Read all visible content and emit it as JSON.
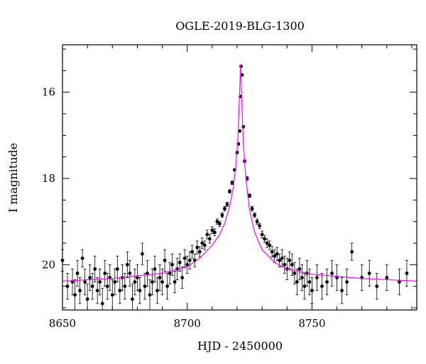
{
  "chart_data": {
    "type": "scatter",
    "title": "OGLE-2019-BLG-1300",
    "xlabel": "HJD - 2450000",
    "ylabel": "I magnitude",
    "xlim": [
      8650,
      8792
    ],
    "ylim": [
      21.05,
      14.9
    ],
    "y_inverted": true,
    "x_ticks": [
      8650,
      8700,
      8750
    ],
    "y_ticks": [
      16,
      18,
      20
    ],
    "grid": false,
    "colors": {
      "points": "#000000",
      "errorbars": "#000000",
      "model": "#ff00ff",
      "frame": "#000000"
    },
    "model": {
      "name": "",
      "x": [
        8650,
        8670,
        8690,
        8700,
        8705,
        8710,
        8713,
        8715,
        8717,
        8718.5,
        8719.5,
        8720.3,
        8721,
        8721.4,
        8721.8,
        8722.5,
        8723.5,
        8725,
        8727,
        8730,
        8735,
        8740,
        8750,
        8770,
        8792
      ],
      "y": [
        20.38,
        20.32,
        20.2,
        20.05,
        19.85,
        19.55,
        19.3,
        19.05,
        18.65,
        18.2,
        17.7,
        17.1,
        16.0,
        15.35,
        16.1,
        17.2,
        18.0,
        18.75,
        19.25,
        19.65,
        19.95,
        20.1,
        20.22,
        20.32,
        20.38
      ]
    },
    "series": [
      {
        "x": [
          8650,
          8652,
          8654,
          8655,
          8656,
          8657,
          8658,
          8659,
          8660,
          8661,
          8662,
          8663,
          8664,
          8665,
          8666,
          8667,
          8668,
          8669,
          8670,
          8671,
          8672,
          8673,
          8674,
          8675,
          8676,
          8677,
          8678,
          8679,
          8680,
          8681,
          8682,
          8683,
          8684,
          8685,
          8686,
          8687,
          8688,
          8689,
          8690,
          8691,
          8692,
          8693,
          8694,
          8695,
          8696,
          8697,
          8698,
          8699,
          8700,
          8701,
          8702,
          8703,
          8704,
          8705,
          8706,
          8707,
          8708,
          8709,
          8710,
          8711,
          8712,
          8713,
          8714,
          8715,
          8716,
          8717,
          8718,
          8719,
          8720,
          8720.5,
          8721,
          8721.3,
          8721.6,
          8722,
          8722.5,
          8723,
          8724,
          8725,
          8726,
          8727,
          8728,
          8729,
          8730,
          8731,
          8732,
          8733,
          8734,
          8735,
          8736,
          8737,
          8738,
          8739,
          8740,
          8741,
          8742,
          8743,
          8744,
          8745,
          8746,
          8747,
          8748,
          8749,
          8750,
          8752,
          8754,
          8756,
          8758,
          8760,
          8762,
          8764,
          8766,
          8770,
          8773,
          8776,
          8780,
          8785,
          8788
        ],
        "y": [
          19.9,
          20.5,
          20.4,
          20.7,
          20.2,
          20.6,
          19.85,
          20.4,
          20.8,
          20.3,
          20.5,
          20.1,
          20.6,
          20.4,
          20.9,
          20.2,
          20.5,
          20.3,
          20.7,
          20.4,
          20.1,
          20.6,
          20.3,
          20.5,
          20.0,
          20.2,
          20.8,
          20.4,
          20.3,
          20.6,
          19.75,
          20.5,
          20.2,
          20.7,
          20.4,
          20.1,
          20.6,
          20.3,
          20.4,
          19.9,
          20.5,
          20.2,
          20.0,
          20.4,
          20.1,
          19.95,
          20.3,
          19.85,
          20.0,
          19.9,
          19.7,
          19.9,
          19.6,
          19.7,
          19.5,
          19.55,
          19.3,
          19.4,
          19.2,
          19.25,
          19.0,
          19.05,
          18.85,
          18.7,
          18.6,
          18.3,
          18.1,
          17.8,
          17.4,
          17.2,
          16.9,
          16.1,
          15.4,
          15.6,
          16.8,
          17.6,
          18.0,
          18.4,
          18.7,
          18.85,
          19.0,
          19.1,
          19.3,
          19.4,
          19.5,
          19.55,
          19.7,
          19.8,
          19.75,
          19.9,
          19.85,
          20.0,
          20.1,
          19.9,
          20.0,
          20.2,
          20.4,
          20.1,
          20.3,
          20.5,
          20.2,
          20.4,
          20.6,
          20.3,
          20.5,
          20.4,
          20.2,
          20.3,
          20.6,
          20.4,
          19.7,
          20.3,
          20.2,
          20.5,
          20.3,
          20.4,
          20.2
        ],
        "yerr": [
          0.25,
          0.3,
          0.3,
          0.35,
          0.3,
          0.3,
          0.2,
          0.3,
          0.35,
          0.3,
          0.3,
          0.3,
          0.3,
          0.3,
          0.35,
          0.3,
          0.3,
          0.3,
          0.35,
          0.3,
          0.3,
          0.3,
          0.3,
          0.3,
          0.3,
          0.3,
          0.35,
          0.3,
          0.3,
          0.3,
          0.25,
          0.3,
          0.3,
          0.35,
          0.3,
          0.3,
          0.3,
          0.3,
          0.3,
          0.25,
          0.3,
          0.25,
          0.25,
          0.25,
          0.25,
          0.2,
          0.25,
          0.2,
          0.2,
          0.2,
          0.15,
          0.15,
          0.15,
          0.12,
          0.12,
          0.1,
          0.1,
          0.1,
          0.08,
          0.08,
          0.06,
          0.06,
          0.05,
          0.05,
          0.05,
          0.04,
          0.04,
          0.03,
          0.03,
          0.03,
          0.03,
          0.02,
          0.02,
          0.02,
          0.03,
          0.03,
          0.04,
          0.04,
          0.05,
          0.05,
          0.06,
          0.06,
          0.08,
          0.08,
          0.1,
          0.1,
          0.12,
          0.15,
          0.15,
          0.15,
          0.2,
          0.2,
          0.25,
          0.2,
          0.25,
          0.25,
          0.3,
          0.25,
          0.3,
          0.3,
          0.3,
          0.3,
          0.3,
          0.3,
          0.3,
          0.3,
          0.3,
          0.3,
          0.3,
          0.3,
          0.2,
          0.3,
          0.3,
          0.3,
          0.3,
          0.3,
          0.3
        ]
      }
    ]
  }
}
